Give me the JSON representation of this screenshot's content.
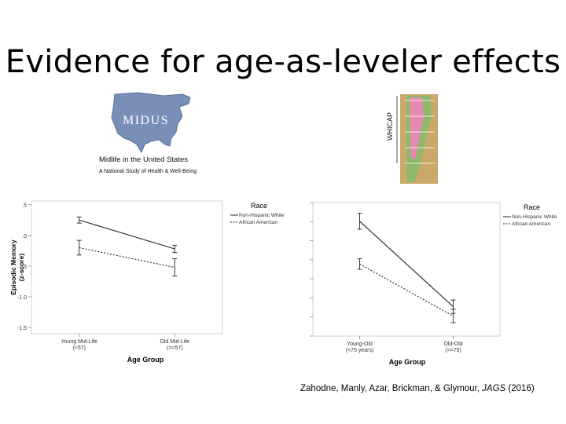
{
  "slide": {
    "title": "Evidence for age-as-leveler effects",
    "citation_authors": "Zahodne, Manly, Azar, Brickman, & Glymour,",
    "citation_journal": "JAGS",
    "citation_year": "(2016)"
  },
  "logos": {
    "midus_wordmark": "MIDUS",
    "midus_line1": "Midlife in the United States",
    "midus_line2": "A National Study of Health & Well-Being",
    "whicap_label": "WHICAP",
    "colors": {
      "midus_map": "#7a8fb8",
      "whicap_pink": "#e58ab0",
      "whicap_green": "#8fb86a",
      "whicap_tan": "#c8a96a"
    }
  },
  "chart_data": [
    {
      "type": "line",
      "ylabel": "Episodic Memory (z-score)",
      "xlabel": "Age Group",
      "categories": [
        "Young Mid-Life (<57)",
        "Old Mid-Life (>=57)"
      ],
      "category_lines": [
        [
          "Young Mid-Life",
          "(<57)"
        ],
        [
          "Old Mid-Life",
          "(>=57)"
        ]
      ],
      "yticks": [
        ".5",
        ".0",
        "-.5",
        "-1.0",
        "-1.5"
      ],
      "ylim": [
        -1.5,
        0.5
      ],
      "legend_title": "Race",
      "legend_position": "top-right",
      "series": [
        {
          "name": "Non-Hispanic White",
          "style": "solid",
          "values": [
            0.25,
            -0.22
          ],
          "error": [
            0.05,
            0.06
          ]
        },
        {
          "name": "African American",
          "style": "dotted",
          "values": [
            -0.2,
            -0.52
          ],
          "error": [
            0.12,
            0.14
          ]
        }
      ]
    },
    {
      "type": "line",
      "xlabel": "Age Group",
      "categories": [
        "Young-Old (<75 years)",
        "Old-Old (>=75)"
      ],
      "category_lines": [
        [
          "Young-Old",
          "(<75 years)"
        ],
        [
          "Old-Old",
          "(>=75)"
        ]
      ],
      "legend_title": "Race",
      "legend_position": "top-right",
      "series": [
        {
          "name": "Non-Hispanic White",
          "style": "solid",
          "values": [
            0.86,
            0.22
          ],
          "error": [
            0.06,
            0.05
          ]
        },
        {
          "name": "African American",
          "style": "dotted",
          "values": [
            0.54,
            0.15
          ],
          "error": [
            0.04,
            0.05
          ]
        }
      ]
    }
  ]
}
